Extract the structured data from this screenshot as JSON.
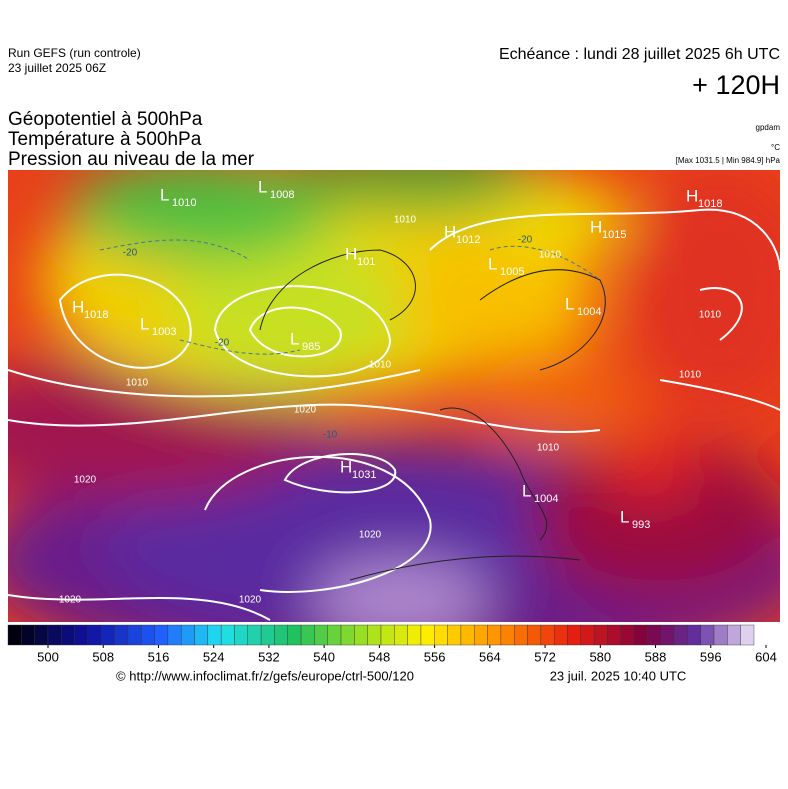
{
  "header": {
    "run": "Run GEFS (run controle)",
    "run_date": "23 juillet 2025 06Z",
    "forecast": "Echéance : lundi 28 juillet 2025 6h UTC",
    "lead": "+ 120H"
  },
  "titles": [
    "Géopotentiel à 500hPa",
    "Température à 500hPa",
    "Pression au niveau de la mer"
  ],
  "units": [
    "gpdam",
    "°C",
    "[Max 1031.5 | Min 984.9] hPa"
  ],
  "centers": [
    {
      "type": "H",
      "value": "1018"
    },
    {
      "type": "L",
      "value": "1003"
    },
    {
      "type": "L",
      "value": "1010"
    },
    {
      "type": "L",
      "value": "1008"
    },
    {
      "type": "H",
      "value": "101"
    },
    {
      "type": "L",
      "value": "985"
    },
    {
      "type": "H",
      "value": "1012"
    },
    {
      "type": "L",
      "value": "1005"
    },
    {
      "type": "H",
      "value": "1018"
    },
    {
      "type": "H",
      "value": "1015"
    },
    {
      "type": "L",
      "value": "1004"
    },
    {
      "type": "H",
      "value": "1031"
    },
    {
      "type": "L",
      "value": "1004"
    },
    {
      "type": "L",
      "value": "993"
    }
  ],
  "isobar_labels": [
    "1010",
    "1020",
    "1020",
    "1020",
    "1020",
    "1020",
    "1010",
    "1010",
    "1010",
    "1010",
    "1010",
    "-20",
    "-20",
    "-20",
    "-10",
    "1010"
  ],
  "colorbar": {
    "ticks": [
      500,
      508,
      516,
      524,
      532,
      540,
      548,
      556,
      564,
      572,
      580,
      588,
      596,
      604
    ]
  },
  "footer": {
    "url": "© http://www.infoclimat.fr/z/gefs/europe/ctrl-500/120",
    "time": "23 juil. 2025 10:40 UTC"
  }
}
